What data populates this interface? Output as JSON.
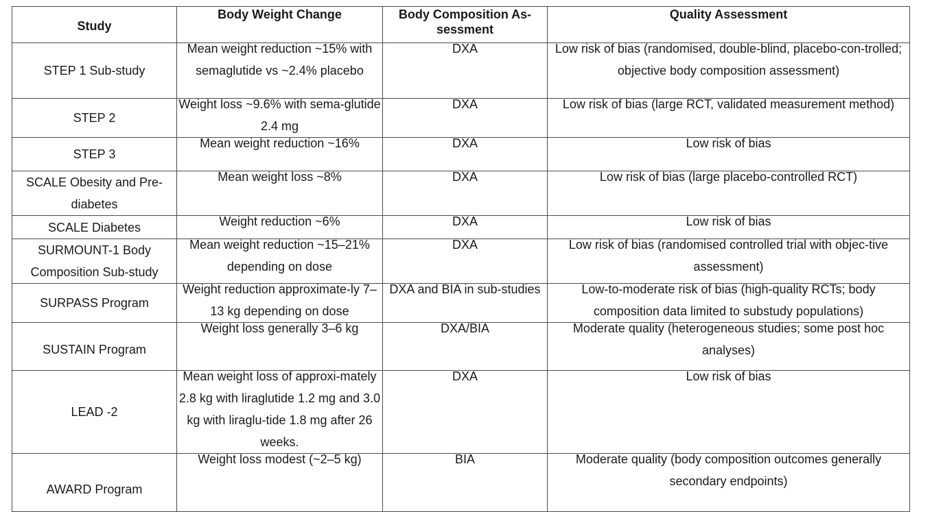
{
  "headers": {
    "study": "Study",
    "weight": "Body Weight Change",
    "composition": "Body Composition As-sessment",
    "quality": "Quality Assessment"
  },
  "rows": [
    {
      "study": "STEP 1 Sub-study",
      "weight": "Mean weight reduction ~15% with semaglutide vs ~2.4% placebo",
      "composition": "DXA",
      "quality": "Low risk of bias (randomised, double-blind, placebo-con-trolled; objective body composition assessment)"
    },
    {
      "study": "STEP 2",
      "weight": "Weight loss ~9.6% with sema-glutide 2.4 mg",
      "composition": "DXA",
      "quality": "Low risk of bias (large RCT, validated measurement method)"
    },
    {
      "study": "STEP 3",
      "weight": "Mean weight reduction ~16%",
      "composition": "DXA",
      "quality": "Low risk of bias"
    },
    {
      "study": "SCALE Obesity and Pre-diabetes",
      "weight": "Mean weight loss ~8%",
      "composition": "DXA",
      "quality": "Low risk of bias (large placebo-controlled RCT)"
    },
    {
      "study": "SCALE Diabetes",
      "weight": "Weight reduction ~6%",
      "composition": "DXA",
      "quality": "Low risk of bias"
    },
    {
      "study": "SURMOUNT-1 Body Composition Sub-study",
      "weight": "Mean weight reduction ~15–21% depending on dose",
      "composition": "DXA",
      "quality": "Low risk of bias (randomised controlled trial with objec-tive assessment)"
    },
    {
      "study": "SURPASS Program",
      "weight": "Weight reduction approximate-ly 7–13 kg depending on dose",
      "composition": "DXA and BIA in sub-studies",
      "quality": "Low-to-moderate risk of bias (high-quality RCTs; body composition data limited to substudy populations)"
    },
    {
      "study": "SUSTAIN Program",
      "weight": "Weight loss generally 3–6 kg",
      "composition": "DXA/BIA",
      "quality": "Moderate quality (heterogeneous studies; some post hoc analyses)"
    },
    {
      "study": "LEAD -2",
      "weight": "Mean weight loss of approxi-mately 2.8 kg with liraglutide 1.2 mg and 3.0 kg with liraglu-tide 1.8 mg after 26 weeks.",
      "composition": "DXA",
      "quality": "Low risk of bias"
    },
    {
      "study": "AWARD Program",
      "weight": "Weight loss modest (~2–5 kg)",
      "composition": "BIA",
      "quality": "Moderate quality (body composition outcomes generally secondary endpoints)"
    }
  ]
}
